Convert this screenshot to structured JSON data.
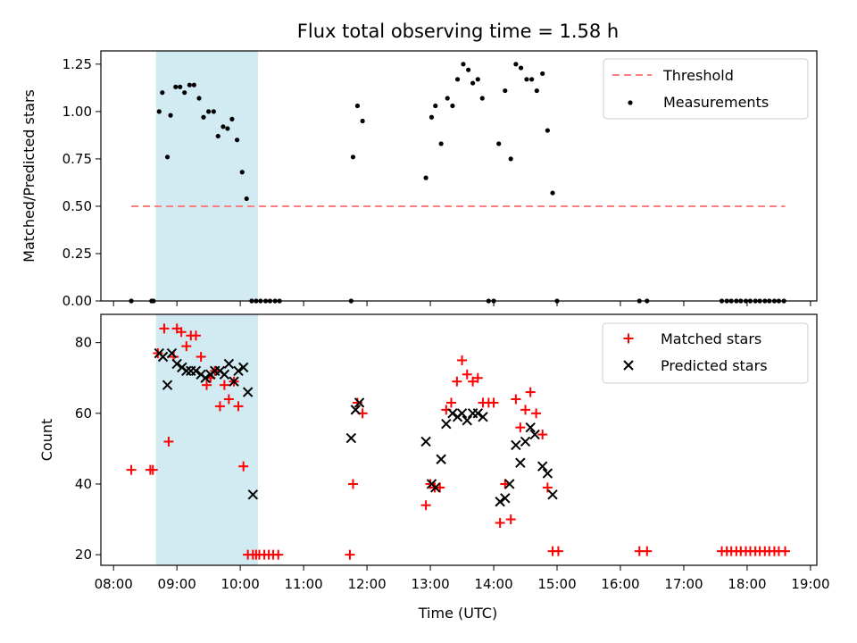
{
  "title": "Flux total observing time = 1.58 h",
  "chart_data": [
    {
      "type": "scatter",
      "ylabel": "Matched/Predicted stars",
      "ylim": [
        0,
        1.32
      ],
      "yticks": [
        0,
        0.25,
        0.5,
        0.75,
        1.0,
        1.25
      ],
      "ytick_labels": [
        "0.00",
        "0.25",
        "0.50",
        "0.75",
        "1.00",
        "1.25"
      ],
      "xlim": [
        7.8,
        19.1
      ],
      "shaded_span": [
        8.67,
        10.28
      ],
      "shaded_color": "#add8e6",
      "threshold": {
        "name": "Threshold",
        "value": 0.5,
        "x": [
          8.28,
          18.6
        ],
        "color": "#ff7f7f"
      },
      "series": [
        {
          "name": "Measurements",
          "color": "#000000",
          "x": [
            8.28,
            8.6,
            8.63,
            8.72,
            8.77,
            8.85,
            8.9,
            8.98,
            9.05,
            9.12,
            9.2,
            9.27,
            9.35,
            9.42,
            9.5,
            9.58,
            9.65,
            9.73,
            9.8,
            9.87,
            9.95,
            10.03,
            10.1,
            10.18,
            10.25,
            10.32,
            10.4,
            10.47,
            10.55,
            10.62,
            11.75,
            11.78,
            11.85,
            11.93,
            12.93,
            13.02,
            13.08,
            13.17,
            13.27,
            13.35,
            13.43,
            13.52,
            13.6,
            13.67,
            13.75,
            13.82,
            13.92,
            14.0,
            14.08,
            14.18,
            14.27,
            14.35,
            14.43,
            14.52,
            14.6,
            14.68,
            14.77,
            14.85,
            14.93,
            15.0,
            16.3,
            16.42,
            17.6,
            17.68,
            17.75,
            17.83,
            17.9,
            17.98,
            18.05,
            18.13,
            18.2,
            18.28,
            18.35,
            18.43,
            18.5,
            18.58
          ],
          "y": [
            0.0,
            0.0,
            0.0,
            1.0,
            1.1,
            0.76,
            0.98,
            1.13,
            1.13,
            1.1,
            1.14,
            1.14,
            1.07,
            0.97,
            1.0,
            1.0,
            0.87,
            0.92,
            0.91,
            0.96,
            0.85,
            0.68,
            0.54,
            0.0,
            0.0,
            0.0,
            0.0,
            0.0,
            0.0,
            0.0,
            0.0,
            0.76,
            1.03,
            0.95,
            0.65,
            0.97,
            1.03,
            0.83,
            1.07,
            1.03,
            1.17,
            1.25,
            1.22,
            1.15,
            1.17,
            1.07,
            0.0,
            0.0,
            0.83,
            1.11,
            0.75,
            1.25,
            1.23,
            1.17,
            1.17,
            1.11,
            1.2,
            0.9,
            0.57,
            0.0,
            0.0,
            0.0,
            0.0,
            0.0,
            0.0,
            0.0,
            0.0,
            0.0,
            0.0,
            0.0,
            0.0,
            0.0,
            0.0,
            0.0,
            0.0,
            0.0
          ]
        }
      ]
    },
    {
      "type": "scatter",
      "xlabel": "Time (UTC)",
      "ylabel": "Count",
      "ylim": [
        17,
        88
      ],
      "yticks": [
        20,
        40,
        60,
        80
      ],
      "ytick_labels": [
        "20",
        "40",
        "60",
        "80"
      ],
      "xlim": [
        7.8,
        19.1
      ],
      "xticks": [
        8,
        9,
        10,
        11,
        12,
        13,
        14,
        15,
        16,
        17,
        18,
        19
      ],
      "xtick_labels": [
        "08:00",
        "09:00",
        "10:00",
        "11:00",
        "12:00",
        "13:00",
        "14:00",
        "15:00",
        "16:00",
        "17:00",
        "18:00",
        "19:00"
      ],
      "shaded_span": [
        8.67,
        10.28
      ],
      "shaded_color": "#add8e6",
      "series": [
        {
          "name": "Matched stars",
          "marker": "+",
          "color": "#ff0000",
          "x": [
            8.28,
            8.58,
            8.62,
            8.7,
            8.8,
            8.87,
            8.95,
            9.0,
            9.07,
            9.15,
            9.22,
            9.3,
            9.38,
            9.47,
            9.53,
            9.6,
            9.68,
            9.75,
            9.82,
            9.9,
            9.97,
            10.05,
            10.12,
            10.2,
            10.25,
            10.3,
            10.38,
            10.45,
            10.52,
            10.6,
            11.73,
            11.78,
            11.85,
            11.93,
            12.93,
            13.0,
            13.07,
            13.15,
            13.25,
            13.33,
            13.42,
            13.5,
            13.58,
            13.67,
            13.75,
            13.83,
            13.92,
            14.0,
            14.1,
            14.18,
            14.27,
            14.35,
            14.42,
            14.5,
            14.58,
            14.67,
            14.77,
            14.85,
            14.93,
            15.02,
            16.3,
            16.42,
            17.6,
            17.68,
            17.75,
            17.83,
            17.9,
            17.98,
            18.05,
            18.13,
            18.2,
            18.28,
            18.35,
            18.43,
            18.5,
            18.6
          ],
          "y": [
            44,
            44,
            44,
            77,
            84,
            52,
            76,
            84,
            83,
            79,
            82,
            82,
            76,
            68,
            70,
            72,
            62,
            68,
            64,
            69,
            62,
            45,
            20,
            20,
            20,
            20,
            20,
            20,
            20,
            20,
            20,
            40,
            63,
            60,
            34,
            40,
            39,
            39,
            61,
            63,
            69,
            75,
            71,
            69,
            70,
            63,
            63,
            63,
            29,
            40,
            30,
            64,
            56,
            61,
            66,
            60,
            54,
            39,
            21,
            21,
            21,
            21,
            21,
            21,
            21,
            21,
            21,
            21,
            21,
            21,
            21,
            21,
            21,
            21,
            21,
            21
          ]
        },
        {
          "name": "Predicted stars",
          "marker": "x",
          "color": "#000000",
          "x": [
            8.72,
            8.78,
            8.85,
            8.92,
            9.0,
            9.08,
            9.15,
            9.22,
            9.3,
            9.38,
            9.45,
            9.53,
            9.6,
            9.68,
            9.75,
            9.82,
            9.9,
            9.97,
            10.05,
            10.12,
            10.2,
            11.75,
            11.82,
            11.88,
            12.93,
            13.02,
            13.08,
            13.17,
            13.25,
            13.35,
            13.43,
            13.5,
            13.58,
            13.67,
            13.75,
            13.83,
            14.1,
            14.18,
            14.25,
            14.35,
            14.42,
            14.5,
            14.58,
            14.65,
            14.77,
            14.85,
            14.93
          ],
          "y": [
            77,
            76,
            68,
            77,
            74,
            73,
            72,
            72,
            72,
            71,
            70,
            71,
            72,
            72,
            71,
            74,
            69,
            72,
            73,
            66,
            37,
            53,
            61,
            63,
            52,
            40,
            39,
            47,
            57,
            60,
            59,
            60,
            58,
            60,
            60,
            59,
            35,
            36,
            40,
            51,
            46,
            52,
            56,
            54,
            45,
            43,
            37
          ]
        }
      ]
    }
  ]
}
